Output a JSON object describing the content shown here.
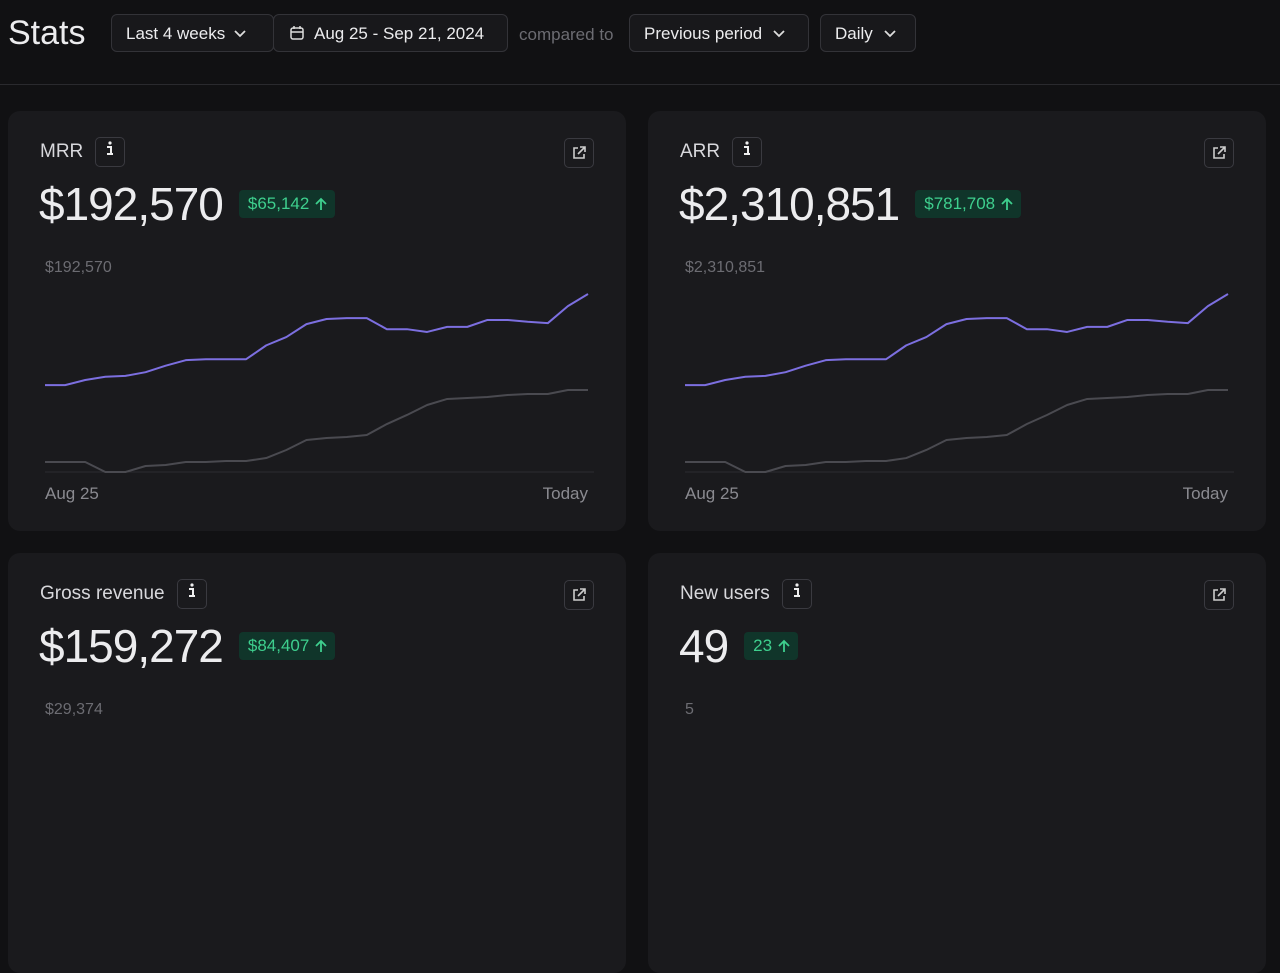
{
  "header": {
    "title": "Stats",
    "range": "Last 4 weeks",
    "dates": "Aug 25 - Sep 21, 2024",
    "compared_label": "compared to",
    "comparison": "Previous period",
    "interval": "Daily"
  },
  "cards": [
    {
      "title": "MRR",
      "value": "$192,570",
      "delta": "$65,142",
      "chart": {
        "type": "line",
        "max_label": "$192,570",
        "ylim": [
          0,
          192570
        ],
        "x_start": "Aug 25",
        "x_end": "Today",
        "series": [
          {
            "color": "#7c6fe0",
            "values": [
              94000,
              94000,
              99500,
              103000,
              104000,
              108000,
              115000,
              121000,
              122000,
              122000,
              122000,
              137000,
              146000,
              160000,
              165500,
              166500,
              166500,
              154500,
              154500,
              151500,
              157000,
              157000,
              164500,
              164500,
              162500,
              161000,
              179500,
              192570
            ]
          },
          {
            "color": "#4a4a50",
            "values": [
              10800,
              10800,
              10800,
              0,
              0,
              6500,
              7600,
              10800,
              10800,
              11900,
              11900,
              15100,
              23800,
              34600,
              36800,
              37900,
              40000,
              51900,
              61700,
              72500,
              79000,
              80100,
              81100,
              83300,
              84400,
              84400,
              88700,
              88700
            ]
          }
        ]
      }
    },
    {
      "title": "ARR",
      "value": "$2,310,851",
      "delta": "$781,708",
      "chart": {
        "type": "line",
        "max_label": "$2,310,851",
        "ylim": [
          0,
          2310851
        ],
        "x_start": "Aug 25",
        "x_end": "Today",
        "series": [
          {
            "color": "#7c6fe0",
            "values": [
              1128000,
              1128000,
              1194000,
              1236000,
              1248000,
              1296000,
              1380000,
              1452000,
              1464000,
              1464000,
              1464000,
              1644000,
              1752000,
              1920000,
              1986000,
              1998000,
              1998000,
              1854000,
              1854000,
              1818000,
              1884000,
              1884000,
              1974000,
              1974000,
              1950000,
              1932000,
              2154000,
              2310851
            ]
          },
          {
            "color": "#4a4a50",
            "values": [
              130000,
              130000,
              130000,
              0,
              0,
              78000,
              91000,
              130000,
              130000,
              143000,
              143000,
              181000,
              286000,
              415000,
              442000,
              455000,
              480000,
              623000,
              740000,
              870000,
              948000,
              961000,
              973000,
              1000000,
              1013000,
              1013000,
              1064000,
              1064000
            ]
          }
        ]
      }
    },
    {
      "title": "Gross revenue",
      "value": "$159,272",
      "delta": "$84,407",
      "chart": {
        "max_label": "$29,374"
      }
    },
    {
      "title": "New users",
      "value": "49",
      "delta": "23",
      "chart": {
        "max_label": "5"
      }
    }
  ]
}
